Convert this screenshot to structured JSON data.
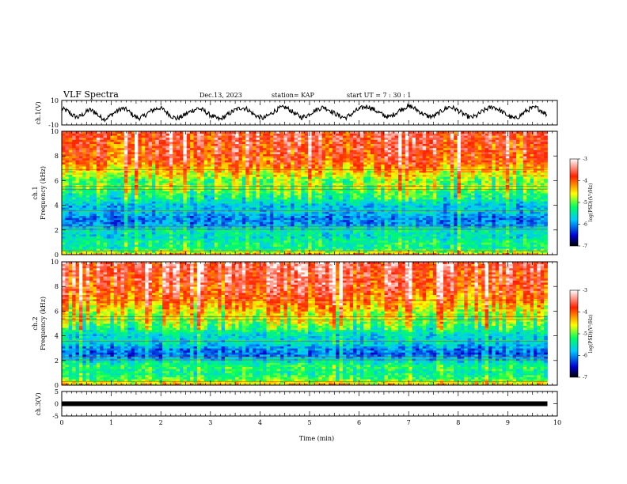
{
  "header": {
    "title": "VLF Spectra",
    "date": "Dec.13, 2023",
    "station": "station= KAP",
    "start": "start  UT  =   7 : 30 : 1"
  },
  "chart_data": [
    {
      "type": "line",
      "name": "ch1-waveform",
      "ylabel": "ch.1(V)",
      "ylim": [
        -10,
        10
      ],
      "yticks": [
        "10",
        "-10"
      ],
      "xlim": [
        0,
        10
      ],
      "x_end": 9.8,
      "y": [
        3.2,
        1.5,
        -2.1,
        -3.8,
        -1.2,
        2.4,
        0.8,
        -3.5,
        -5.2,
        -2.0,
        1.0,
        3.5,
        2.2,
        -1.8,
        -4.5,
        -3.0,
        0.5,
        2.8,
        4.0,
        1.2,
        -2.5,
        -4.8,
        -3.2,
        -0.5,
        2.0,
        3.6,
        1.8,
        -1.4,
        -3.9,
        -5.5,
        -2.8,
        0.2,
        2.6,
        4.2,
        2.9,
        -0.8,
        -3.4,
        -4.6,
        -1.9,
        1.4,
        3.8,
        4.4,
        1.6,
        -1.6,
        -3.8,
        -2.2,
        0.9,
        3.0,
        4.6,
        2.4,
        -0.6,
        -2.9,
        -4.1,
        -1.5,
        1.8,
        3.9,
        5.2,
        3.1,
        0.4,
        -2.2,
        -3.6,
        -1.0,
        2.2,
        4.5,
        5.0,
        2.6,
        -0.4,
        -2.8,
        -3.2,
        -0.6,
        2.5,
        4.8,
        3.4,
        0.6,
        -2.4,
        -4.0,
        -2.6,
        0.8,
        3.3,
        4.9,
        2.8,
        -0.2,
        -3.1,
        -4.9,
        -2.4,
        1.1,
        3.5,
        4.1,
        1.3,
        -1.9
      ],
      "note_range": "waveform amplitude approx. within ±6 V"
    },
    {
      "type": "heatmap",
      "name": "ch1-spectrogram",
      "ylabel_top": "ch.1",
      "ylabel": "Frequency  (kHz)",
      "ylim": [
        0,
        10
      ],
      "yticks": [
        "0",
        "2",
        "4",
        "6",
        "8",
        "10"
      ],
      "xlim": [
        0,
        10
      ],
      "x_end": 9.8,
      "colorbar": {
        "label": "log(PSD)(V²/Hz)",
        "range": [
          -7,
          -3
        ],
        "ticks": [
          "-3",
          "-4",
          "-5",
          "-6",
          "-7"
        ]
      },
      "bands_kHz_logpsd": [
        [
          0.0,
          -4.2
        ],
        [
          0.5,
          -5.4
        ],
        [
          1.0,
          -5.3
        ],
        [
          1.5,
          -5.6
        ],
        [
          2.0,
          -5.5
        ],
        [
          2.5,
          -6.0
        ],
        [
          3.0,
          -6.1
        ],
        [
          3.5,
          -5.7
        ],
        [
          4.0,
          -5.8
        ],
        [
          4.5,
          -5.4
        ],
        [
          5.0,
          -5.2
        ],
        [
          5.5,
          -4.9
        ],
        [
          6.0,
          -5.0
        ],
        [
          6.5,
          -4.6
        ],
        [
          7.0,
          -4.3
        ],
        [
          7.5,
          -4.0
        ],
        [
          8.0,
          -3.9
        ],
        [
          8.5,
          -3.8
        ],
        [
          9.0,
          -3.8
        ],
        [
          9.5,
          -3.7
        ]
      ]
    },
    {
      "type": "heatmap",
      "name": "ch2-spectrogram",
      "ylabel_top": "ch.2",
      "ylabel": "Frequency  (kHz)",
      "ylim": [
        0,
        10
      ],
      "yticks": [
        "0",
        "2",
        "4",
        "6",
        "8",
        "10"
      ],
      "xlim": [
        0,
        10
      ],
      "x_end": 9.8,
      "colorbar": {
        "label": "log(PSD)(V²/Hz)",
        "range": [
          -7,
          -3
        ],
        "ticks": [
          "-3",
          "-4",
          "-5",
          "-6",
          "-7"
        ]
      },
      "bands_kHz_logpsd": [
        [
          0.0,
          -4.3
        ],
        [
          0.5,
          -5.1
        ],
        [
          1.0,
          -5.4
        ],
        [
          1.5,
          -5.2
        ],
        [
          2.0,
          -5.6
        ],
        [
          2.5,
          -6.2
        ],
        [
          3.0,
          -6.0
        ],
        [
          3.5,
          -5.6
        ],
        [
          4.0,
          -5.7
        ],
        [
          4.5,
          -5.3
        ],
        [
          5.0,
          -5.0
        ],
        [
          5.5,
          -4.8
        ],
        [
          6.0,
          -4.6
        ],
        [
          6.5,
          -4.3
        ],
        [
          7.0,
          -4.1
        ],
        [
          7.5,
          -3.9
        ],
        [
          8.0,
          -3.8
        ],
        [
          8.5,
          -3.7
        ],
        [
          9.0,
          -3.7
        ],
        [
          9.5,
          -3.6
        ]
      ]
    },
    {
      "type": "line",
      "name": "ch3-trace",
      "ylabel": "ch.3(V)",
      "ylim": [
        -5,
        5
      ],
      "yticks": [
        "5",
        "0",
        "-5"
      ],
      "xlim": [
        0,
        10
      ],
      "x_end": 9.8,
      "y_constant": 0,
      "xlabel": "Time  (min)",
      "xticks": [
        "0",
        "1",
        "2",
        "3",
        "4",
        "5",
        "6",
        "7",
        "8",
        "9",
        "10"
      ]
    }
  ]
}
